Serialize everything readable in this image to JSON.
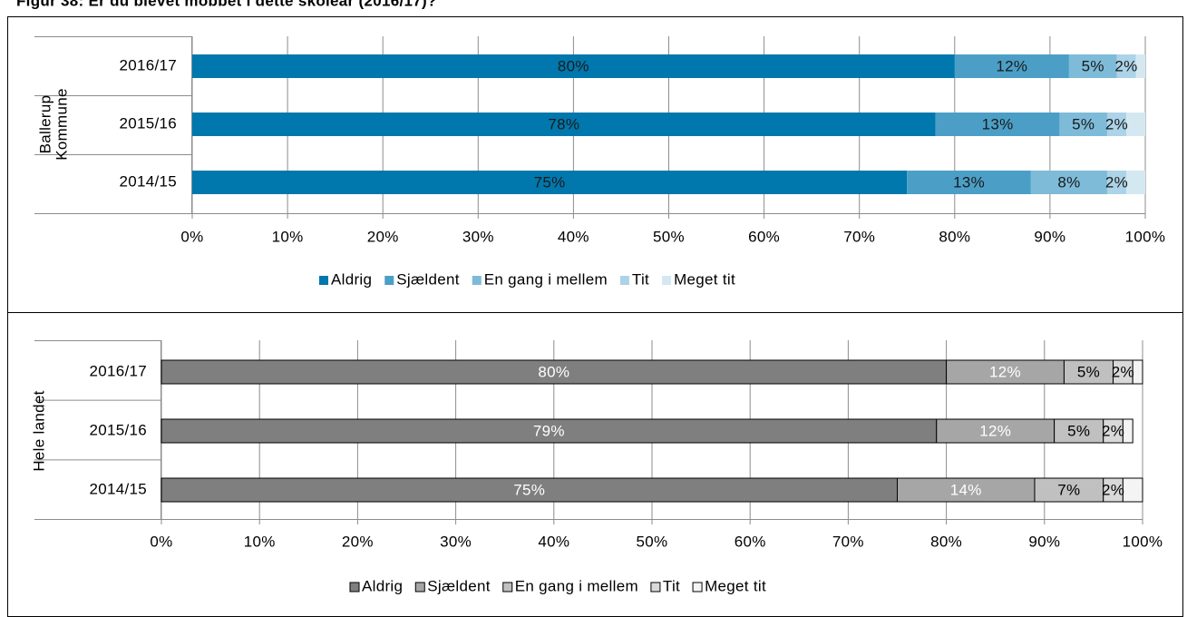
{
  "title": "Figur 38: Er du blevet mobbet i dette skoleår (2016/17)?",
  "chart_data": [
    {
      "type": "bar",
      "orientation": "horizontal",
      "stacked": true,
      "ylabel": [
        "Ballerup",
        "Kommune"
      ],
      "categories": [
        "2016/17",
        "2015/16",
        "2014/15"
      ],
      "xlim": [
        0,
        100
      ],
      "xticks": [
        {
          "value": 0,
          "label": "0%"
        },
        {
          "value": 10,
          "label": "10%"
        },
        {
          "value": 20,
          "label": "20%"
        },
        {
          "value": 30,
          "label": "30%"
        },
        {
          "value": 40,
          "label": "40%"
        },
        {
          "value": 50,
          "label": "50%"
        },
        {
          "value": 60,
          "label": "60%"
        },
        {
          "value": 70,
          "label": "70%"
        },
        {
          "value": 80,
          "label": "80%"
        },
        {
          "value": 90,
          "label": "90%"
        },
        {
          "value": 100,
          "label": "100%"
        }
      ],
      "grid": true,
      "legend": "bottom",
      "series": [
        {
          "name": "Aldrig",
          "color": "#0077ad",
          "label_color": "#1a1a1a",
          "values": [
            80,
            78,
            75
          ],
          "value_labels": [
            "80%",
            "78%",
            "75%"
          ]
        },
        {
          "name": "Sjældent",
          "color": "#4b9fc7",
          "label_color": "#1a1a1a",
          "values": [
            12,
            13,
            13
          ],
          "value_labels": [
            "12%",
            "13%",
            "13%"
          ]
        },
        {
          "name": "En gang i mellem",
          "color": "#7dbbd9",
          "label_color": "#1a1a1a",
          "values": [
            5,
            5,
            8
          ],
          "value_labels": [
            "5%",
            "5%",
            "8%"
          ]
        },
        {
          "name": "Tit",
          "color": "#acd3e7",
          "label_color": "#1a1a1a",
          "values": [
            2,
            2,
            2
          ],
          "value_labels": [
            "2%",
            "2%",
            "2%"
          ]
        },
        {
          "name": "Meget tit",
          "color": "#d4e8f2",
          "label_color": "#1a1a1a",
          "values": [
            1,
            2,
            2
          ],
          "value_labels": [
            null,
            null,
            null
          ]
        }
      ]
    },
    {
      "type": "bar",
      "orientation": "horizontal",
      "stacked": true,
      "ylabel": [
        "Hele landet"
      ],
      "categories": [
        "2016/17",
        "2015/16",
        "2014/15"
      ],
      "xlim": [
        0,
        100
      ],
      "xticks": [
        {
          "value": 0,
          "label": "0%"
        },
        {
          "value": 10,
          "label": "10%"
        },
        {
          "value": 20,
          "label": "20%"
        },
        {
          "value": 30,
          "label": "30%"
        },
        {
          "value": 40,
          "label": "40%"
        },
        {
          "value": 50,
          "label": "50%"
        },
        {
          "value": 60,
          "label": "60%"
        },
        {
          "value": 70,
          "label": "70%"
        },
        {
          "value": 80,
          "label": "80%"
        },
        {
          "value": 90,
          "label": "90%"
        },
        {
          "value": 100,
          "label": "100%"
        }
      ],
      "grid": true,
      "legend": "bottom",
      "bar_edge": "#000000",
      "series": [
        {
          "name": "Aldrig",
          "color": "#7f7f7f",
          "label_color": "#ffffff",
          "values": [
            80,
            79,
            75
          ],
          "value_labels": [
            "80%",
            "79%",
            "75%"
          ]
        },
        {
          "name": "Sjældent",
          "color": "#a6a6a6",
          "label_color": "#ffffff",
          "values": [
            12,
            12,
            14
          ],
          "value_labels": [
            "12%",
            "12%",
            "14%"
          ]
        },
        {
          "name": "En gang i mellem",
          "color": "#c0c0c0",
          "label_color": "#000000",
          "values": [
            5,
            5,
            7
          ],
          "value_labels": [
            "5%",
            "5%",
            "7%"
          ]
        },
        {
          "name": "Tit",
          "color": "#d9d9d9",
          "label_color": "#000000",
          "values": [
            2,
            2,
            2
          ],
          "value_labels": [
            "2%",
            "2%",
            "2%"
          ]
        },
        {
          "name": "Meget tit",
          "color": "#f4f4f4",
          "label_color": "#000000",
          "values": [
            1,
            1,
            2
          ],
          "value_labels": [
            null,
            null,
            null
          ]
        }
      ]
    }
  ]
}
